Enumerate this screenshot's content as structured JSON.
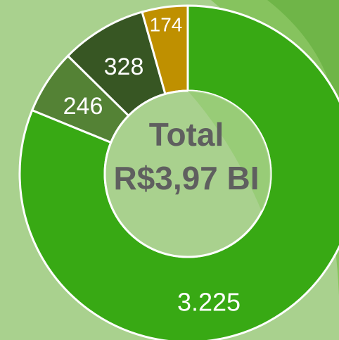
{
  "chart_data": {
    "type": "donut",
    "title": "Total",
    "subtitle": "R$3,97 BI",
    "categories": [
      null,
      null,
      null,
      null
    ],
    "values": [
      3225,
      246,
      328,
      174
    ],
    "value_labels": [
      "3.225",
      "246",
      "328",
      "174"
    ],
    "colors": [
      "#38a914",
      "#548235",
      "#375623",
      "#bf9000"
    ]
  }
}
